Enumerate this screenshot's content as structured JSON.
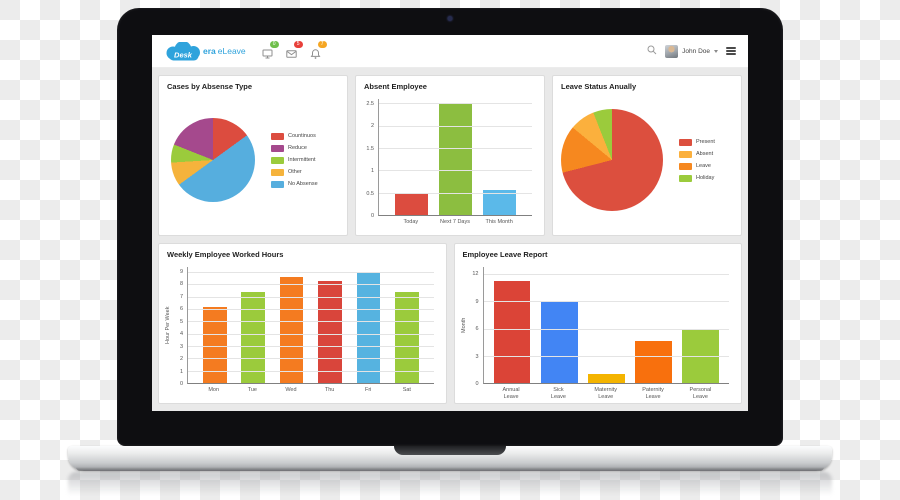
{
  "header": {
    "logo": {
      "brand_bold": "Desk",
      "brand_suffix": "era",
      "product": "eLeave",
      "color": "#2FA3DC"
    },
    "notifications": [
      {
        "icon": "monitor-icon",
        "count": "0",
        "color": "#6FBF4B"
      },
      {
        "icon": "envelope-icon",
        "count": "5",
        "color": "#E8403A"
      },
      {
        "icon": "bell-icon",
        "count": "7",
        "color": "#F5A623"
      }
    ],
    "user": {
      "name": "John Doe"
    }
  },
  "chart_data": [
    {
      "type": "pie",
      "title": "Cases by Absense Type",
      "slices_clockwise": [
        {
          "label": "Countinuos",
          "value": 15,
          "color": "#DC4C3F"
        },
        {
          "label": "No Absense",
          "value": 50,
          "color": "#56AEDE"
        },
        {
          "label": "Other",
          "value": 9,
          "color": "#F5B33C"
        },
        {
          "label": "Intermittent",
          "value": 7,
          "color": "#9BCB3C"
        },
        {
          "label": "Reduce",
          "value": 19,
          "color": "#A5498D"
        }
      ],
      "legend": [
        "Countinuos",
        "Reduce",
        "Intermittent",
        "Other",
        "No Absense"
      ],
      "legend_position": "right",
      "start_angle": "top"
    },
    {
      "type": "bar",
      "title": "Absent Employee",
      "categories": [
        "Today",
        "Next 7 Days",
        "This Month"
      ],
      "values": [
        0.5,
        2.5,
        0.55
      ],
      "colors": [
        "#DC4C3F",
        "#8CBE40",
        "#5BB9E9"
      ],
      "ylabel": "",
      "yticks": [
        0,
        0.5,
        1,
        1.5,
        2,
        2.5
      ],
      "ylim": [
        0,
        2.6
      ],
      "grid": true
    },
    {
      "type": "pie",
      "title": "Leave Status Anually",
      "slices_clockwise": [
        {
          "label": "Present",
          "value": 71,
          "color": "#DC4F3E"
        },
        {
          "label": "Leave",
          "value": 15,
          "color": "#F6881F"
        },
        {
          "label": "Absent",
          "value": 8,
          "color": "#FBB03D"
        },
        {
          "label": "Holiday",
          "value": 6,
          "color": "#9BCB3C"
        }
      ],
      "legend": [
        "Present",
        "Absent",
        "Leave",
        "Holiday"
      ],
      "legend_position": "right",
      "start_angle": "top"
    },
    {
      "type": "bar",
      "title": "Weekly Employee Worked Hours",
      "categories": [
        "Mon",
        "Tue",
        "Wed",
        "Thu",
        "Fri",
        "Sat"
      ],
      "values": [
        6.2,
        7.4,
        8.6,
        8.3,
        8.95,
        7.4
      ],
      "colors": [
        "#F47B20",
        "#9BCB3C",
        "#F47B20",
        "#D9453B",
        "#56B3E0",
        "#9BCB3C"
      ],
      "ylabel": "Hour Per Week",
      "yticks": [
        0,
        1,
        2,
        3,
        4,
        5,
        6,
        7,
        8,
        9
      ],
      "ylim": [
        0,
        9.4
      ],
      "grid": true
    },
    {
      "type": "bar",
      "title": "Employee Leave Report",
      "categories": [
        "Annual\nLeave",
        "Sick\nLeave",
        "Maternity\nLeave",
        "Paternity\nLeave",
        "Personal\nLeave"
      ],
      "values": [
        11.3,
        9,
        1,
        4.6,
        6
      ],
      "colors": [
        "#DB4437",
        "#4285F4",
        "#F4B400",
        "#F8700D",
        "#9BCB3C"
      ],
      "ylabel": "Month",
      "yticks": [
        0,
        3,
        6,
        9,
        12
      ],
      "ylim": [
        0,
        12.8
      ],
      "grid": true
    }
  ]
}
